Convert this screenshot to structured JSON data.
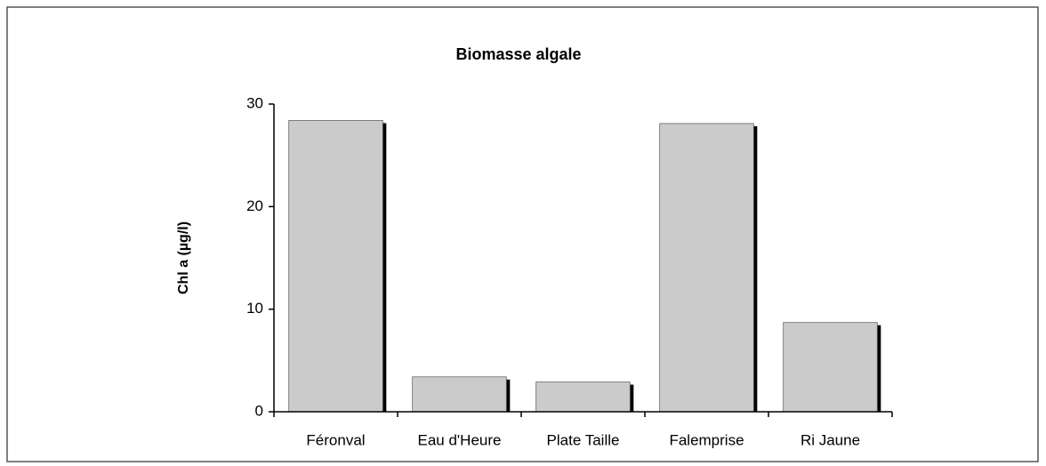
{
  "chart_data": {
    "type": "bar",
    "title": "Biomasse algale",
    "y_label": "Chl a (µg/l)",
    "categories": [
      "Féronval",
      "Eau d'Heure",
      "Plate Taille",
      "Falemprise",
      "Ri Jaune"
    ],
    "values": [
      28.4,
      3.4,
      2.9,
      28.1,
      8.7
    ],
    "color": "#cbcbcb",
    "ylim": [
      0,
      30
    ],
    "yticks": [
      0,
      10,
      20,
      30
    ],
    "grid": false
  }
}
